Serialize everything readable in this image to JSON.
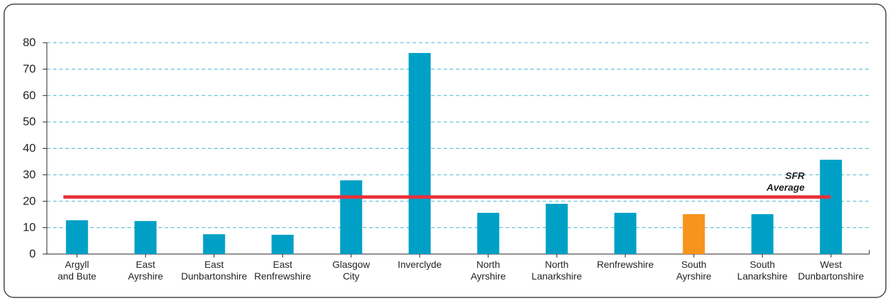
{
  "chart_data": {
    "type": "bar",
    "categories": [
      [
        "Argyll",
        "and Bute"
      ],
      [
        "East",
        "Ayrshire"
      ],
      [
        "East",
        "Dunbartonshire"
      ],
      [
        "East",
        "Renfrewshire"
      ],
      [
        "Glasgow",
        "City"
      ],
      [
        "Inverclyde"
      ],
      [
        "North",
        "Ayrshire"
      ],
      [
        "North",
        "Lanarkshire"
      ],
      [
        "Renfrewshire"
      ],
      [
        "South",
        "Ayrshire"
      ],
      [
        "South",
        "Lanarkshire"
      ],
      [
        "West",
        "Dunbartonshire"
      ]
    ],
    "values": [
      12.8,
      12.5,
      7.5,
      7.3,
      27.9,
      76.1,
      15.6,
      19.0,
      15.6,
      15.1,
      15.1,
      35.7
    ],
    "colors": [
      "#00a0c6",
      "#00a0c6",
      "#00a0c6",
      "#00a0c6",
      "#00a0c6",
      "#00a0c6",
      "#00a0c6",
      "#00a0c6",
      "#00a0c6",
      "#f7941d",
      "#00a0c6",
      "#00a0c6"
    ],
    "ylim": [
      0,
      80
    ],
    "yticks": [
      0,
      10,
      20,
      30,
      40,
      50,
      60,
      70,
      80
    ],
    "grid": true,
    "reference_line": {
      "value": 21.6,
      "label": [
        "SFR",
        "Average"
      ],
      "color": "#e8303a"
    }
  }
}
